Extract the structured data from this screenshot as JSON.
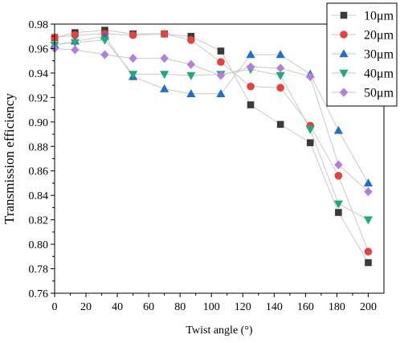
{
  "chart_data": {
    "type": "line",
    "xlabel": "Twist angle (°)",
    "ylabel": "Transmission efficiency",
    "xlim": [
      0,
      210
    ],
    "ylim": [
      0.76,
      0.98
    ],
    "x_ticks": [
      0,
      20,
      40,
      60,
      80,
      100,
      120,
      140,
      160,
      180,
      200
    ],
    "x_tick_labels": [
      "0",
      "20",
      "40",
      "60",
      "80",
      "100",
      "120",
      "140",
      "160",
      "180",
      "200"
    ],
    "y_ticks": [
      0.76,
      0.78,
      0.8,
      0.82,
      0.84,
      0.86,
      0.88,
      0.9,
      0.92,
      0.94,
      0.96,
      0.98
    ],
    "y_tick_labels": [
      "0.76",
      "0.78",
      "0.80",
      "0.82",
      "0.84",
      "0.86",
      "0.88",
      "0.90",
      "0.92",
      "0.94",
      "0.96",
      "0.98"
    ],
    "grid": false,
    "legend_position": "top-right",
    "series": [
      {
        "name": "10μm",
        "marker": "square",
        "color": "#3a3a3a",
        "x": [
          0,
          13,
          32,
          50,
          70,
          87,
          106,
          125,
          144,
          163,
          181,
          200
        ],
        "y": [
          0.969,
          0.973,
          0.975,
          0.972,
          0.972,
          0.97,
          0.958,
          0.914,
          0.898,
          0.883,
          0.826,
          0.785
        ]
      },
      {
        "name": "20μm",
        "marker": "circle",
        "color": "#e8403c",
        "x": [
          0,
          13,
          32,
          50,
          70,
          87,
          106,
          125,
          144,
          163,
          181,
          200
        ],
        "y": [
          0.969,
          0.971,
          0.972,
          0.971,
          0.972,
          0.967,
          0.949,
          0.929,
          0.928,
          0.897,
          0.856,
          0.794
        ]
      },
      {
        "name": "30μm",
        "marker": "triangle-up",
        "color": "#1f6fce",
        "x": [
          0,
          13,
          32,
          50,
          70,
          87,
          106,
          125,
          144,
          163,
          181,
          200
        ],
        "y": [
          0.963,
          0.966,
          0.97,
          0.937,
          0.927,
          0.923,
          0.923,
          0.955,
          0.955,
          0.939,
          0.893,
          0.85
        ]
      },
      {
        "name": "40μm",
        "marker": "triangle-down",
        "color": "#1faa7a",
        "x": [
          0,
          13,
          32,
          50,
          70,
          87,
          106,
          125,
          144,
          163,
          181,
          200
        ],
        "y": [
          0.963,
          0.965,
          0.967,
          0.939,
          0.939,
          0.938,
          0.939,
          0.943,
          0.938,
          0.894,
          0.833,
          0.82
        ]
      },
      {
        "name": "50μm",
        "marker": "diamond",
        "color": "#b57ede",
        "x": [
          0,
          13,
          32,
          50,
          70,
          87,
          106,
          125,
          144,
          163,
          181,
          200
        ],
        "y": [
          0.96,
          0.959,
          0.955,
          0.952,
          0.952,
          0.947,
          0.938,
          0.945,
          0.944,
          0.937,
          0.865,
          0.843
        ]
      }
    ]
  }
}
